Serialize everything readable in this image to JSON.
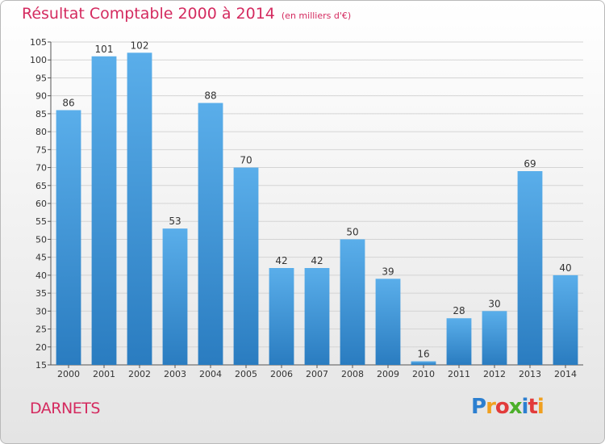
{
  "chart_data": {
    "type": "bar",
    "title": "Résultat Comptable 2000 à 2014",
    "unit_note": "(en milliers d'€)",
    "categories": [
      "2000",
      "2001",
      "2002",
      "2003",
      "2004",
      "2005",
      "2006",
      "2007",
      "2008",
      "2009",
      "2010",
      "2011",
      "2012",
      "2013",
      "2014"
    ],
    "values": [
      86,
      101,
      102,
      53,
      88,
      70,
      42,
      42,
      50,
      39,
      16,
      28,
      30,
      69,
      40
    ],
    "ylim": [
      15,
      105
    ],
    "yticks": [
      15,
      20,
      25,
      30,
      35,
      40,
      45,
      50,
      55,
      60,
      65,
      70,
      75,
      80,
      85,
      90,
      95,
      100,
      105
    ],
    "grid": true,
    "bar_color": "#3d93d6",
    "xlabel": "",
    "ylabel": ""
  },
  "place_name": "DARNETS",
  "logo": {
    "letters": [
      "P",
      "r",
      "o",
      "x",
      "i",
      "t",
      "i"
    ],
    "colors": [
      "#2c7fd0",
      "#f0a020",
      "#e23b3b",
      "#4caf2a",
      "#2c7fd0",
      "#e23b3b",
      "#f0a020"
    ]
  },
  "colors": {
    "title": "#d42a5f",
    "grid": "#d4d4d4"
  }
}
